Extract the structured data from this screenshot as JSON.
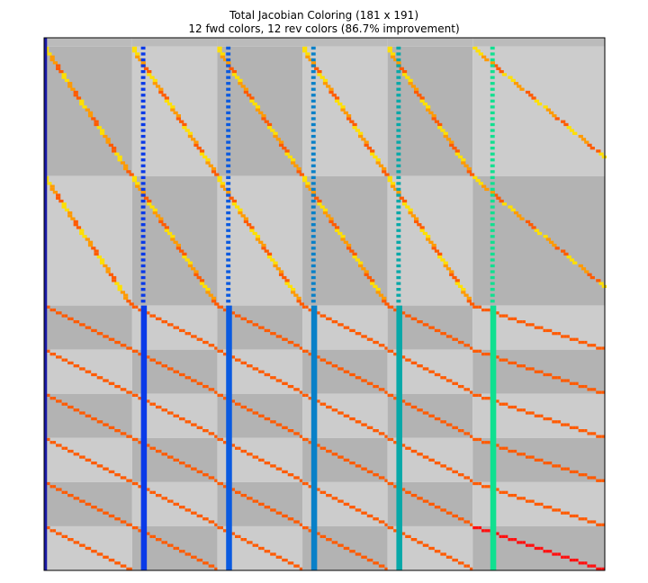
{
  "chart_data": {
    "type": "heatmap",
    "title": "Total Jacobian Coloring (181 x 191)",
    "subtitle": "12 fwd colors, 12 rev colors (86.7% improvement)",
    "n_rows": 181,
    "n_cols": 191,
    "fwd_colors": 12,
    "rev_colors": 12,
    "improvement_percent": 86.7,
    "column_blocks": [
      {
        "start": 0,
        "end": 30
      },
      {
        "start": 30,
        "end": 59
      },
      {
        "start": 59,
        "end": 88
      },
      {
        "start": 88,
        "end": 117
      },
      {
        "start": 117,
        "end": 146
      },
      {
        "start": 146,
        "end": 191
      }
    ],
    "row_blocks": [
      {
        "start": 0,
        "end": 3
      },
      {
        "start": 3,
        "end": 47
      },
      {
        "start": 47,
        "end": 91
      },
      {
        "start": 91,
        "end": 106
      },
      {
        "start": 106,
        "end": 121
      },
      {
        "start": 121,
        "end": 136
      },
      {
        "start": 136,
        "end": 151
      },
      {
        "start": 151,
        "end": 166
      },
      {
        "start": 166,
        "end": 181
      }
    ],
    "dense_columns": [
      {
        "col": 0,
        "color": "#1a1aa6",
        "kind": "solid"
      },
      {
        "col": 33,
        "color": "#0a3ae8",
        "kind": "dashed-top"
      },
      {
        "col": 62,
        "color": "#0a5ae0",
        "kind": "dashed-top"
      },
      {
        "col": 91,
        "color": "#0880c8",
        "kind": "dashed-top"
      },
      {
        "col": 120,
        "color": "#07a8a8",
        "kind": "dashed-top"
      },
      {
        "col": 152,
        "color": "#10e090",
        "kind": "dashed-top"
      }
    ],
    "colors": {
      "background_light": "#cccccc",
      "background_dark": "#b3b3b3",
      "top_band": "#bbbbbb",
      "diag_yellow": "#ffe000",
      "diag_orange": "#ff9a00",
      "diag_red_orange": "#ff5a00",
      "diag_red": "#ff1010"
    }
  }
}
